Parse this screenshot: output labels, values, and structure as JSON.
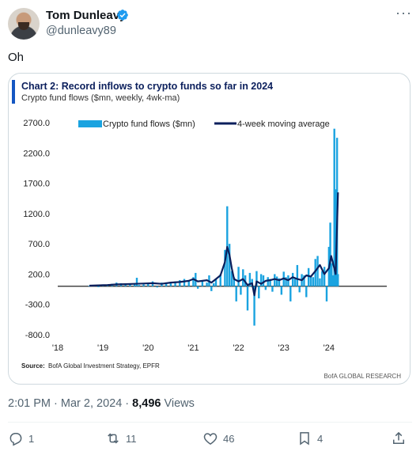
{
  "tweet": {
    "author_name": "Tom Dunleavy",
    "handle": "@dunleavy89",
    "text": "Oh",
    "time": "2:01 PM · Mar 2, 2024 · ",
    "views_count": "8,496",
    "views_label": " Views"
  },
  "actions": {
    "replies": "1",
    "reposts": "11",
    "likes": "46",
    "bookmarks": "4"
  },
  "icons": {
    "verified": "verified-badge-icon",
    "more": "more-options-icon",
    "reply": "reply-icon",
    "repost": "repost-icon",
    "like": "heart-icon",
    "bookmark": "bookmark-icon",
    "share": "share-icon"
  },
  "colors": {
    "accent": "#1d9bf0",
    "bar": "#1aa3e0",
    "line": "#0b1f5c",
    "title_bar": "#1456c2"
  },
  "chart_data": {
    "type": "bar",
    "title": "Chart 2: Record inflows to crypto funds so far in 2024",
    "subtitle": "Crypto fund flows ($mn, weekly, 4wk-ma)",
    "source_label": "Source:",
    "source": "BofA Global Investment Strategy, EPFR",
    "credit": "BofA GLOBAL RESEARCH",
    "ylim": [
      -800,
      2700
    ],
    "y_ticks": [
      "2700.0",
      "2200.0",
      "1700.0",
      "1200.0",
      "700.0",
      "200.0",
      "-300.0",
      "-800.0"
    ],
    "y_tick_values": [
      2700,
      2200,
      1700,
      1200,
      700,
      200,
      -300,
      -800
    ],
    "x_ticks": [
      "'18",
      "'19",
      "'20",
      "'21",
      "'22",
      "'23",
      "'24"
    ],
    "x_tick_years": [
      2018,
      2019,
      2020,
      2021,
      2022,
      2023,
      2024
    ],
    "xlim": [
      2018,
      2025
    ],
    "legend": [
      "Crypto fund flows ($mn)",
      "4-week moving average"
    ],
    "series": [
      {
        "name": "Crypto fund flows ($mn)",
        "x": [
          2018.7,
          2018.8,
          2018.9,
          2019.0,
          2019.1,
          2019.2,
          2019.3,
          2019.4,
          2019.5,
          2019.6,
          2019.7,
          2019.75,
          2019.8,
          2019.9,
          2020.0,
          2020.1,
          2020.2,
          2020.3,
          2020.4,
          2020.5,
          2020.6,
          2020.7,
          2020.8,
          2020.9,
          2021.0,
          2021.05,
          2021.1,
          2021.2,
          2021.3,
          2021.35,
          2021.4,
          2021.45,
          2021.5,
          2021.6,
          2021.7,
          2021.75,
          2021.8,
          2021.85,
          2021.9,
          2021.95,
          2022.0,
          2022.05,
          2022.1,
          2022.15,
          2022.2,
          2022.25,
          2022.3,
          2022.35,
          2022.4,
          2022.45,
          2022.5,
          2022.55,
          2022.6,
          2022.65,
          2022.7,
          2022.75,
          2022.8,
          2022.85,
          2022.9,
          2022.95,
          2023.0,
          2023.05,
          2023.1,
          2023.15,
          2023.2,
          2023.25,
          2023.3,
          2023.35,
          2023.4,
          2023.45,
          2023.5,
          2023.55,
          2023.6,
          2023.65,
          2023.7,
          2023.75,
          2023.8,
          2023.85,
          2023.9,
          2023.95,
          2024.0,
          2024.03,
          2024.06,
          2024.09,
          2024.12,
          2024.15,
          2024.18,
          2024.2
        ],
        "values": [
          10,
          20,
          -15,
          30,
          25,
          40,
          60,
          50,
          30,
          40,
          35,
          140,
          20,
          30,
          50,
          80,
          -20,
          60,
          40,
          70,
          80,
          100,
          120,
          90,
          150,
          220,
          -40,
          100,
          60,
          180,
          -80,
          50,
          120,
          200,
          600,
          1320,
          700,
          250,
          150,
          -250,
          320,
          -140,
          280,
          180,
          -400,
          220,
          120,
          -650,
          250,
          -200,
          200,
          180,
          -60,
          150,
          120,
          -90,
          200,
          160,
          130,
          -140,
          240,
          150,
          180,
          -250,
          220,
          120,
          350,
          -100,
          200,
          180,
          -180,
          300,
          160,
          150,
          450,
          500,
          130,
          250,
          320,
          -250,
          650,
          1050,
          380,
          180,
          2600,
          1600,
          2450,
          200
        ]
      },
      {
        "name": "4-week moving average",
        "x": [
          2018.7,
          2018.9,
          2019.1,
          2019.3,
          2019.5,
          2019.7,
          2019.9,
          2020.1,
          2020.3,
          2020.5,
          2020.7,
          2020.9,
          2021.0,
          2021.1,
          2021.2,
          2021.3,
          2021.4,
          2021.5,
          2021.6,
          2021.7,
          2021.75,
          2021.8,
          2021.85,
          2021.9,
          2022.0,
          2022.1,
          2022.2,
          2022.3,
          2022.35,
          2022.4,
          2022.5,
          2022.6,
          2022.7,
          2022.8,
          2022.9,
          2023.0,
          2023.1,
          2023.2,
          2023.3,
          2023.4,
          2023.5,
          2023.6,
          2023.7,
          2023.8,
          2023.9,
          2024.0,
          2024.05,
          2024.1,
          2024.15,
          2024.2
        ],
        "values": [
          10,
          15,
          20,
          30,
          35,
          40,
          45,
          50,
          40,
          60,
          70,
          90,
          120,
          80,
          90,
          100,
          60,
          120,
          180,
          400,
          650,
          520,
          300,
          120,
          80,
          120,
          20,
          50,
          -150,
          80,
          40,
          90,
          100,
          120,
          100,
          130,
          100,
          150,
          120,
          100,
          180,
          160,
          250,
          350,
          200,
          300,
          500,
          350,
          200,
          1550
        ]
      }
    ]
  }
}
